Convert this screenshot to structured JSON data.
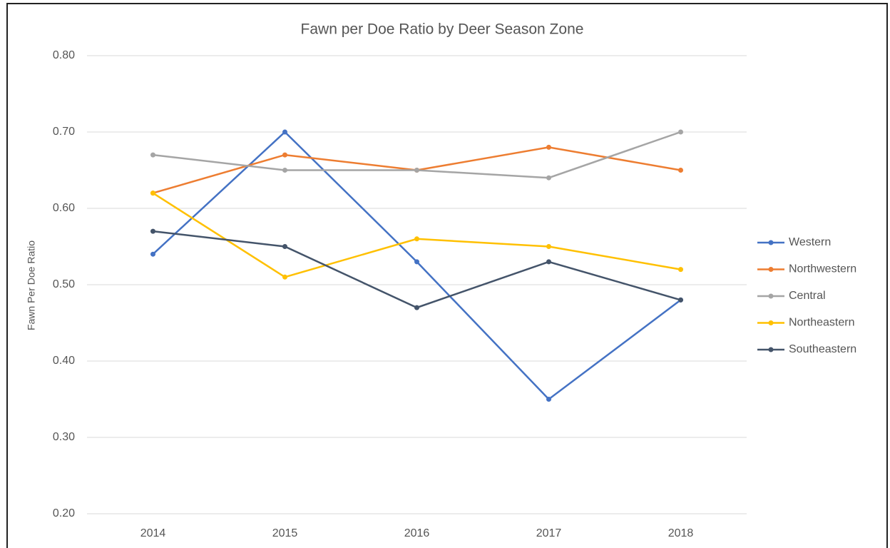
{
  "chart_data": {
    "type": "line",
    "title": "Fawn per Doe Ratio by Deer Season Zone",
    "y_label": "Fawn Per Doe Ratio",
    "categories": [
      "2014",
      "2015",
      "2016",
      "2017",
      "2018"
    ],
    "series": [
      {
        "name": "Western",
        "color": "#4472c4",
        "values": [
          0.54,
          0.7,
          0.53,
          0.35,
          0.48
        ]
      },
      {
        "name": "Northwestern",
        "color": "#ed7d31",
        "values": [
          0.62,
          0.67,
          0.65,
          0.68,
          0.65
        ]
      },
      {
        "name": "Central",
        "color": "#a5a5a5",
        "values": [
          0.67,
          0.65,
          0.65,
          0.64,
          0.7
        ]
      },
      {
        "name": "Northeastern",
        "color": "#ffc000",
        "values": [
          0.62,
          0.51,
          0.56,
          0.55,
          0.52
        ]
      },
      {
        "name": "Southeastern",
        "color": "#44546a",
        "values": [
          0.57,
          0.55,
          0.47,
          0.53,
          0.48
        ]
      }
    ],
    "ylim": [
      0.2,
      0.8
    ],
    "yticks": [
      {
        "value": 0.2,
        "label": "0.20"
      },
      {
        "value": 0.3,
        "label": "0.30"
      },
      {
        "value": 0.4,
        "label": "0.40"
      },
      {
        "value": 0.5,
        "label": "0.50"
      },
      {
        "value": 0.6,
        "label": "0.60"
      },
      {
        "value": 0.7,
        "label": "0.70"
      },
      {
        "value": 0.8,
        "label": "0.80"
      }
    ],
    "grid": true,
    "legend": "right"
  }
}
